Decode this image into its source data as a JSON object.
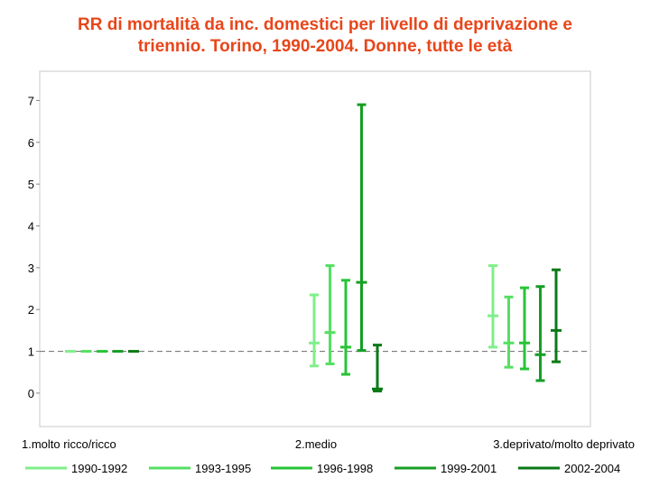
{
  "chart_data": {
    "type": "errorbar",
    "title_lines": [
      "RR di mortalità da inc. domestici per livello di deprivazione e",
      "triennio. Torino, 1990-2004. Donne, tutte le età"
    ],
    "xlabel": "",
    "ylabel": "",
    "categories": [
      "1.molto ricco/ricco",
      "2.medio",
      "3.deprivato/molto deprivato"
    ],
    "y_ticks": [
      0,
      1,
      2,
      3,
      4,
      5,
      6,
      7
    ],
    "ylim": [
      -0.8,
      7.7
    ],
    "reference_line": 1,
    "grid": false,
    "legend_position": "bottom",
    "series": [
      {
        "name": "1990-1992",
        "color": "#7fef8a",
        "estimate": [
          1,
          1.2,
          1.85
        ],
        "lower": [
          1,
          0.65,
          1.1
        ],
        "upper": [
          1,
          2.35,
          3.05
        ]
      },
      {
        "name": "1993-1995",
        "color": "#55df62",
        "estimate": [
          1,
          1.45,
          1.2
        ],
        "lower": [
          1,
          0.7,
          0.62
        ],
        "upper": [
          1,
          3.05,
          2.3
        ]
      },
      {
        "name": "1996-1998",
        "color": "#27c436",
        "estimate": [
          1,
          1.1,
          1.2
        ],
        "lower": [
          1,
          0.45,
          0.58
        ],
        "upper": [
          1,
          2.7,
          2.52
        ]
      },
      {
        "name": "1999-2001",
        "color": "#169e24",
        "estimate": [
          1,
          2.65,
          0.92
        ],
        "lower": [
          1,
          1.02,
          0.3
        ],
        "upper": [
          1,
          6.9,
          2.55
        ]
      },
      {
        "name": "2002-2004",
        "color": "#0a7a16",
        "estimate": [
          1,
          0.1,
          1.5
        ],
        "lower": [
          1,
          0.05,
          0.75
        ],
        "upper": [
          1,
          1.15,
          2.95
        ]
      }
    ]
  }
}
